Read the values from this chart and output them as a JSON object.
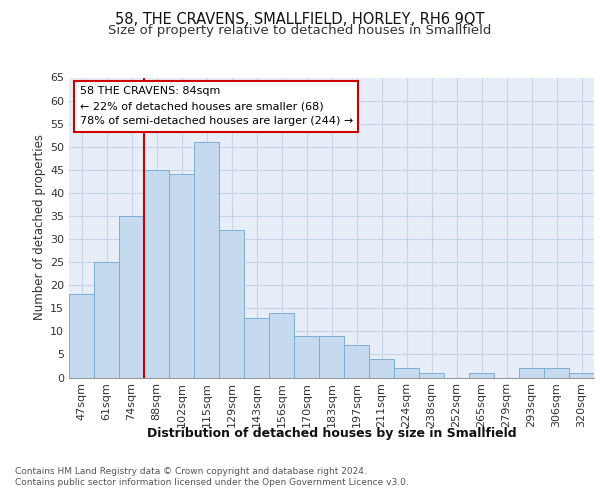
{
  "title1": "58, THE CRAVENS, SMALLFIELD, HORLEY, RH6 9QT",
  "title2": "Size of property relative to detached houses in Smallfield",
  "xlabel": "Distribution of detached houses by size in Smallfield",
  "ylabel": "Number of detached properties",
  "categories": [
    "47sqm",
    "61sqm",
    "74sqm",
    "88sqm",
    "102sqm",
    "115sqm",
    "129sqm",
    "143sqm",
    "156sqm",
    "170sqm",
    "183sqm",
    "197sqm",
    "211sqm",
    "224sqm",
    "238sqm",
    "252sqm",
    "265sqm",
    "279sqm",
    "293sqm",
    "306sqm",
    "320sqm"
  ],
  "values": [
    18,
    25,
    35,
    45,
    44,
    51,
    32,
    13,
    14,
    9,
    9,
    7,
    4,
    2,
    1,
    0,
    1,
    0,
    2,
    2,
    1
  ],
  "bar_color": "#c5d9ef",
  "bar_edge_color": "#7bafd4",
  "vline_color": "#cc0000",
  "annotation_box_text": "58 THE CRAVENS: 84sqm\n← 22% of detached houses are smaller (68)\n78% of semi-detached houses are larger (244) →",
  "annotation_box_color": "#cc0000",
  "ylim": [
    0,
    65
  ],
  "yticks": [
    0,
    5,
    10,
    15,
    20,
    25,
    30,
    35,
    40,
    45,
    50,
    55,
    60,
    65
  ],
  "grid_color": "#c8d4e8",
  "bg_color": "#e8eef8",
  "footer_text": "Contains HM Land Registry data © Crown copyright and database right 2024.\nContains public sector information licensed under the Open Government Licence v3.0.",
  "title1_fontsize": 10.5,
  "title2_fontsize": 9.5,
  "xlabel_fontsize": 9,
  "ylabel_fontsize": 8.5,
  "tick_fontsize": 8,
  "annotation_fontsize": 8,
  "footer_fontsize": 6.5
}
